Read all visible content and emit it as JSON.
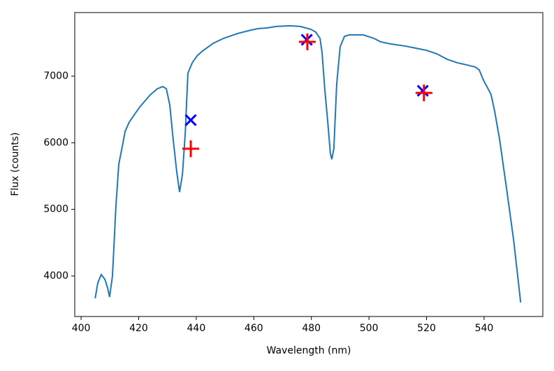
{
  "chart_data": {
    "type": "line",
    "xlabel": "Wavelength (nm)",
    "ylabel": "Flux (counts)",
    "xlim": [
      397.8,
      560.4
    ],
    "ylim": [
      3391,
      7955
    ],
    "xticks": [
      400,
      420,
      440,
      460,
      480,
      500,
      520,
      540
    ],
    "yticks": [
      4000,
      5000,
      6000,
      7000
    ],
    "series": [
      {
        "type": "line",
        "color": "#1f77b4",
        "x": [
          404.9,
          405.8,
          407.0,
          408.3,
          409.2,
          409.9,
          410.9,
          412.1,
          413.1,
          414.3,
          415.3,
          416.7,
          420.4,
          424.0,
          426.5,
          428.4,
          429.6,
          430.8,
          432.0,
          433.2,
          434.2,
          435.2,
          436.2,
          437.1,
          438.6,
          440.3,
          442.2,
          445.9,
          449.5,
          454.4,
          459.2,
          461.6,
          464.8,
          467.7,
          472.6,
          476.2,
          479.8,
          481.5,
          483.0,
          483.7,
          484.7,
          485.7,
          486.6,
          487.1,
          487.8,
          488.8,
          490.0,
          491.5,
          493.2,
          498.0,
          501.7,
          504.1,
          507.7,
          512.6,
          516.2,
          519.9,
          523.5,
          527.2,
          530.8,
          534.0,
          536.9,
          538.3,
          539.8,
          542.4,
          543.7,
          545.4,
          547.8,
          550.3,
          552.7
        ],
        "values": [
          3664,
          3895,
          4021,
          3948,
          3822,
          3685,
          4000,
          5049,
          5679,
          5941,
          6172,
          6308,
          6539,
          6718,
          6812,
          6844,
          6812,
          6571,
          6046,
          5574,
          5259,
          5522,
          6151,
          7043,
          7200,
          7305,
          7379,
          7494,
          7568,
          7641,
          7694,
          7715,
          7725,
          7746,
          7757,
          7746,
          7704,
          7662,
          7568,
          7358,
          6781,
          6308,
          5836,
          5752,
          5910,
          6886,
          7442,
          7599,
          7620,
          7620,
          7568,
          7515,
          7483,
          7452,
          7421,
          7389,
          7337,
          7253,
          7200,
          7169,
          7137,
          7095,
          6938,
          6728,
          6466,
          6046,
          5312,
          4525,
          3601
        ]
      },
      {
        "type": "scatter",
        "marker": "x",
        "color": "#0000ff",
        "x": [
          438.1,
          478.4,
          518.7
        ],
        "values": [
          6340,
          7547,
          6781
        ]
      },
      {
        "type": "scatter",
        "marker": "+",
        "color": "#ff0000",
        "x": [
          438.1,
          478.6,
          519.1
        ],
        "values": [
          5910,
          7515,
          6749
        ]
      }
    ]
  }
}
